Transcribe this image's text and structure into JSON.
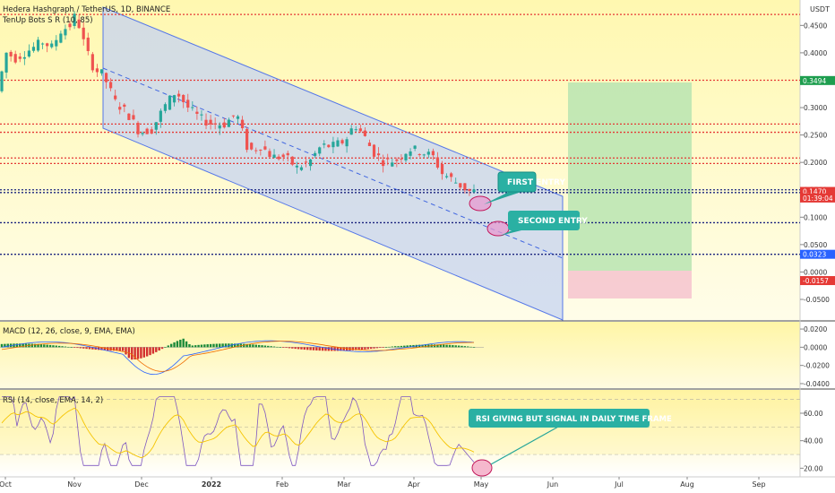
{
  "chart_data": {
    "type": "line",
    "panes": {
      "price": {
        "title": "Hedera Hashgraph / TetherUS, 1D, BINANCE",
        "indicator": "TenUp Bots S R (10, 85)",
        "currency": "USDT",
        "ylim": [
          -0.05,
          0.48
        ],
        "y_ticks": [
          "0.4500",
          "0.4000",
          "0.3500",
          "0.3000",
          "0.2500",
          "0.2000",
          "0.1500",
          "0.1000",
          "0.0500",
          "0.0000",
          "-0.0500"
        ],
        "y_tick_values": [
          0.45,
          0.4,
          0.35,
          0.3,
          0.25,
          0.2,
          0.15,
          0.1,
          0.05,
          0.0,
          -0.05
        ],
        "series": [
          {
            "values": [
              0.33,
              0.4,
              0.39,
              0.4,
              0.41,
              0.42,
              0.41,
              0.44,
              0.45,
              0.47,
              0.41,
              0.37,
              0.36,
              0.31,
              0.29,
              0.255,
              0.26,
              0.3,
              0.33,
              0.3,
              0.28,
              0.27,
              0.27,
              0.29,
              0.22,
              0.23,
              0.21,
              0.21,
              0.19,
              0.2,
              0.23,
              0.23,
              0.24,
              0.27,
              0.25,
              0.22,
              0.2,
              0.205,
              0.225,
              0.22,
              0.21,
              0.18,
              0.17,
              0.158,
              0.147
            ],
            "x": [
              0,
              6,
              12,
              18,
              24,
              30,
              36,
              42,
              48,
              52,
              58,
              64,
              70,
              78,
              86,
              94,
              102,
              110,
              118,
              126,
              134,
              142,
              150,
              158,
              166,
              174,
              182,
              190,
              198,
              206,
              214,
              222,
              230,
              236,
              242,
              248,
              256,
              264,
              272,
              280,
              288,
              294,
              300,
              306,
              312
            ]
          }
        ],
        "sr_lines": [
          {
            "value": 0.47,
            "color": "#e53935",
            "style": "dotted"
          },
          {
            "value": 0.35,
            "color": "#e53935",
            "style": "dotted"
          },
          {
            "value": 0.27,
            "color": "#e53935",
            "style": "dotted"
          },
          {
            "value": 0.255,
            "color": "#e53935",
            "style": "dotted"
          },
          {
            "value": 0.208,
            "color": "#e53935",
            "style": "dotted"
          },
          {
            "value": 0.198,
            "color": "#e53935",
            "style": "dotted"
          },
          {
            "value": 0.15,
            "color": "#1a237e",
            "style": "dotted"
          },
          {
            "value": 0.145,
            "color": "#1a237e",
            "style": "dotted"
          },
          {
            "value": 0.09,
            "color": "#1a237e",
            "style": "dotted"
          },
          {
            "value": 0.0323,
            "color": "#1a237e",
            "style": "dotted"
          }
        ],
        "price_labels": [
          {
            "text": "0.3494",
            "value": 0.3494,
            "color": "#1e9e4f"
          },
          {
            "text": "0.1470",
            "value": 0.147,
            "color": "#e53935"
          },
          {
            "text": "01:39:04",
            "value": 0.135,
            "color": "#e53935"
          },
          {
            "text": "0.0323",
            "value": 0.0323,
            "color": "#2962ff"
          },
          {
            "text": "-0.0157",
            "value": -0.0157,
            "color": "#e53935"
          }
        ],
        "annotations": [
          "FIRST ENTRY",
          "SECOND ENTRY"
        ]
      },
      "macd": {
        "title": "MACD (12, 26, close, 9, EMA, EMA)",
        "y_ticks": [
          "0.0200",
          "0.0000",
          "-0.0200",
          "-0.0400"
        ],
        "y_tick_values": [
          0.02,
          0.0,
          -0.02,
          -0.04
        ],
        "ylim": [
          -0.042,
          0.025
        ]
      },
      "rsi": {
        "title": "RSI (14, close, EMA, 14, 2)",
        "y_ticks": [
          "60.00",
          "40.00",
          "20.00"
        ],
        "y_tick_values": [
          60,
          40,
          20
        ],
        "ylim": [
          15,
          75
        ],
        "annotations": [
          "RSI GIVING BUT SIGNAL IN DAILY TIME FRAME"
        ]
      }
    },
    "x_ticks": [
      "Oct",
      "Nov",
      "Dec",
      "2022",
      "Feb",
      "Mar",
      "Apr",
      "May",
      "Jun",
      "Jul",
      "Aug",
      "Sep"
    ]
  },
  "colors": {
    "bull": "#26a69a",
    "bear": "#ef5350",
    "channel_fill": "#b3c7f0",
    "channel_line": "#2962ff",
    "target_zone": "#a5d6a7",
    "stop_zone": "#f8bbd0",
    "callout": "#26a69a",
    "bg_top": "#fff59d",
    "bg_bottom": "#fffde7"
  }
}
